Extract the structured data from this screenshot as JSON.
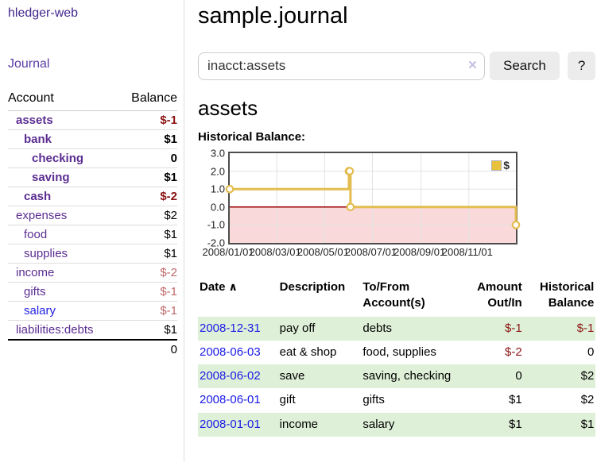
{
  "sidebar": {
    "brand": "hledger-web",
    "journal_link": "Journal",
    "headers": {
      "account": "Account",
      "balance": "Balance"
    },
    "accounts": [
      {
        "name": "assets",
        "balance": "$-1"
      },
      {
        "name": "bank",
        "balance": "$1"
      },
      {
        "name": "checking",
        "balance": "0"
      },
      {
        "name": "saving",
        "balance": "$1"
      },
      {
        "name": "cash",
        "balance": "$-2"
      },
      {
        "name": "expenses",
        "balance": "$2"
      },
      {
        "name": "food",
        "balance": "$1"
      },
      {
        "name": "supplies",
        "balance": "$1"
      },
      {
        "name": "income",
        "balance": "$-2"
      },
      {
        "name": "gifts",
        "balance": "$-1"
      },
      {
        "name": "salary",
        "balance": "$-1"
      },
      {
        "name": "liabilities:debts",
        "balance": "$1"
      }
    ],
    "total": "0"
  },
  "main": {
    "title": "sample.journal",
    "search": {
      "value": "inacct:assets",
      "clear_icon": "×",
      "button_label": "Search",
      "help_label": "?"
    },
    "heading": "assets",
    "chart_label": "Historical Balance:"
  },
  "chart_data": {
    "type": "line",
    "step": true,
    "title": "Historical Balance",
    "series": [
      {
        "name": "$",
        "x_dates": [
          "2008-01-01",
          "2008-06-01",
          "2008-06-02",
          "2008-06-03",
          "2008-12-31"
        ],
        "x_days": [
          0,
          152,
          153,
          154,
          365
        ],
        "values": [
          1,
          2,
          2,
          0,
          -1
        ]
      }
    ],
    "x_range": [
      0,
      365
    ],
    "ylim": [
      -2,
      3
    ],
    "y_ticks": [
      "3.0",
      "2.0",
      "1.0",
      "0.0",
      "-1.0",
      "-2.0"
    ],
    "y_grid_values": [
      2,
      1,
      -1
    ],
    "x_ticks": [
      "2008/01/01",
      "2008/03/01",
      "2008/05/01",
      "2008/07/01",
      "2008/09/01",
      "2008/11/01"
    ],
    "x_tick_days": [
      0,
      60,
      121,
      182,
      244,
      305
    ],
    "legend": "$",
    "legend_position": "top-right",
    "grid": true,
    "colors": {
      "line": "#e3bd4f",
      "marker_fill": "#ffffff",
      "negative_fill": "#f9d9d9",
      "zero_line": "#990000",
      "grid": "#e3e3e3"
    }
  },
  "register": {
    "headers": {
      "date": "Date",
      "sort_icon": "∧",
      "description": "Description",
      "accounts": "To/From Account(s)",
      "amount": "Amount Out/In",
      "balance": "Historical Balance"
    },
    "rows": [
      {
        "date": "2008-12-31",
        "description": "pay off",
        "accounts": "debts",
        "amount": "$-1",
        "balance": "$-1"
      },
      {
        "date": "2008-06-03",
        "description": "eat & shop",
        "accounts": "food, supplies",
        "amount": "$-2",
        "balance": "0"
      },
      {
        "date": "2008-06-02",
        "description": "save",
        "accounts": "saving, checking",
        "amount": "0",
        "balance": "$2"
      },
      {
        "date": "2008-06-01",
        "description": "gift",
        "accounts": "gifts",
        "amount": "$1",
        "balance": "$2"
      },
      {
        "date": "2008-01-01",
        "description": "income",
        "accounts": "salary",
        "amount": "$1",
        "balance": "$1"
      }
    ]
  }
}
